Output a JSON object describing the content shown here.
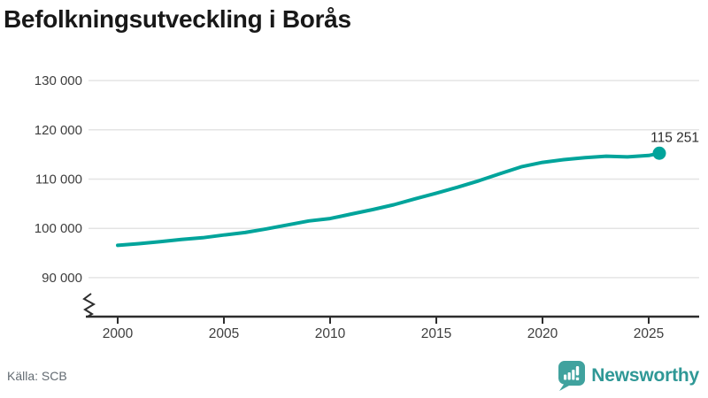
{
  "title": "Befolkningsutveckling i Borås",
  "source": "Källa: SCB",
  "logo": {
    "text": "Newsworthy",
    "icon": "newsworthy-bar-chart-bubble-icon"
  },
  "colors": {
    "line": "#00a49b",
    "end_dot": "#00a49b",
    "grid": "#e4e4e4",
    "axis": "#2d2d2d",
    "tick_label": "#3e3e3e",
    "title": "#181818",
    "end_label": "#2b2b2b",
    "source": "#636b72",
    "brand_icon": "#40a29e",
    "brand_text": "#2f9896"
  },
  "chart_data": {
    "type": "line",
    "title": "Befolkningsutveckling i Borås",
    "xlabel": "",
    "ylabel": "",
    "grid": "horizontal",
    "legend": "none",
    "axis_break": true,
    "ylim": [
      90000,
      130000
    ],
    "xlim": [
      2000,
      2027
    ],
    "x": [
      2000,
      2001,
      2002,
      2003,
      2004,
      2005,
      2006,
      2007,
      2008,
      2009,
      2010,
      2011,
      2012,
      2013,
      2014,
      2015,
      2016,
      2017,
      2018,
      2019,
      2020,
      2021,
      2022,
      2023,
      2024,
      2025,
      2025.5
    ],
    "values": [
      96550,
      96900,
      97300,
      97750,
      98100,
      98650,
      99150,
      99900,
      100700,
      101500,
      102000,
      102900,
      103800,
      104800,
      106000,
      107150,
      108350,
      109650,
      111100,
      112500,
      113400,
      113950,
      114350,
      114650,
      114500,
      114800,
      115251
    ],
    "end_label": "115 251",
    "yticks": [
      {
        "value": 90000,
        "label": "90 000"
      },
      {
        "value": 100000,
        "label": "100 000"
      },
      {
        "value": 110000,
        "label": "110 000"
      },
      {
        "value": 120000,
        "label": "120 000"
      },
      {
        "value": 130000,
        "label": "130 000"
      }
    ],
    "xticks": [
      {
        "year": 2000,
        "label": "2000"
      },
      {
        "year": 2005,
        "label": "2005"
      },
      {
        "year": 2010,
        "label": "2010"
      },
      {
        "year": 2015,
        "label": "2015"
      },
      {
        "year": 2020,
        "label": "2020"
      },
      {
        "year": 2025,
        "label": "2025"
      }
    ]
  }
}
